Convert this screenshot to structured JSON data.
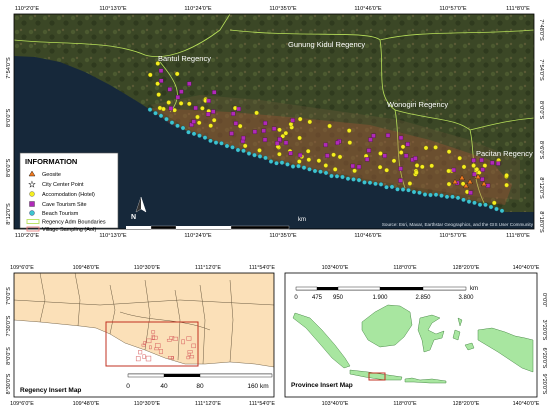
{
  "main_map": {
    "top_ticks": [
      "110°2'0\"E",
      "110°13'0\"E",
      "110°24'0\"E",
      "110°35'0\"E",
      "110°46'0\"E",
      "110°57'0\"E",
      "111°8'0\"E"
    ],
    "bottom_ticks": [
      "110°2'0\"E",
      "110°13'0\"E",
      "110°24'0\"E",
      "110°35'0\"E",
      "110°46'0\"E",
      "110°57'0\"E",
      "111°8'0\"E"
    ],
    "left_ticks": [
      "7°54'0\"S",
      "8°0'0\"S",
      "8°6'0\"S",
      "8°12'0\"S"
    ],
    "right_ticks": [
      "7°48'0\"S",
      "7°54'0\"S",
      "8°0'0\"S",
      "8°6'0\"S",
      "8°12'0\"S",
      "8°18'0\"S"
    ],
    "regions": [
      "Bantul Regency",
      "Gunung Kidul Regency",
      "Wonogiri Regency",
      "Pacitan Regency"
    ],
    "north_label": "N",
    "scale": {
      "ticks": [
        "0",
        "5",
        "10",
        "20",
        "30",
        "40"
      ],
      "unit": "km"
    },
    "attribution": "Source: Esri, Maxar, Earthstar Geographics, and the GIS User Community",
    "legend": {
      "title": "INFORMATION",
      "items": [
        {
          "label": "Geosite",
          "symbol": "triangle",
          "color": "#f07a20"
        },
        {
          "label": "City Center Point",
          "symbol": "star",
          "color": "#ffffff"
        },
        {
          "label": "Accomodation (Hotel)",
          "symbol": "circle",
          "color": "#f5ee1f"
        },
        {
          "label": "Cave Tourism Site",
          "symbol": "square",
          "color": "#b02ab8"
        },
        {
          "label": "Beach Tourism",
          "symbol": "circle",
          "color": "#3cc4d0"
        },
        {
          "label": "Regency Adm Boundaries",
          "symbol": "line-box",
          "color": "#b8e05a"
        },
        {
          "label": "Village Sampling (AoI)",
          "symbol": "line-box",
          "color": "#e88080"
        }
      ]
    }
  },
  "regency_insert": {
    "title": "Regency Insert Map",
    "top_ticks": [
      "109°6'0\"E",
      "109°48'0\"E",
      "110°30'0\"E",
      "111°12'0\"E",
      "111°54'0\"E"
    ],
    "bottom_ticks": [
      "109°6'0\"E",
      "109°48'0\"E",
      "110°30'0\"E",
      "111°12'0\"E",
      "111°54'0\"E"
    ],
    "left_ticks": [
      "7°0'0\"S",
      "7°30'0\"S",
      "8°0'0\"S",
      "8°30'0\"S"
    ],
    "scale": {
      "ticks": [
        "0",
        "40",
        "80",
        "160 km"
      ]
    }
  },
  "province_insert": {
    "title": "Province Insert Map",
    "top_ticks": [
      "103°40'0\"E",
      "118°0'0\"E",
      "128°20'0\"E",
      "140°40'0\"E"
    ],
    "bottom_ticks": [
      "103°40'0\"E",
      "118°0'0\"E",
      "128°20'0\"E",
      "140°40'0\"E"
    ],
    "right_ticks": [
      "0°0'0\"",
      "3°20'0\"S",
      "6°20'0\"S",
      "9°20'0\"S"
    ],
    "scale": {
      "ticks": [
        "0",
        "475",
        "950",
        "1.900",
        "2.850",
        "3.800"
      ],
      "unit": "km"
    }
  },
  "colors": {
    "ocean": "#16283a",
    "land": "#3e4a28",
    "hotel": "#f5ee1f",
    "cave": "#b02ab8",
    "beach": "#3cc4d0",
    "boundary": "#b8e05a",
    "insert_land": "#fbe0b8",
    "province_land": "#a8e6a0"
  }
}
